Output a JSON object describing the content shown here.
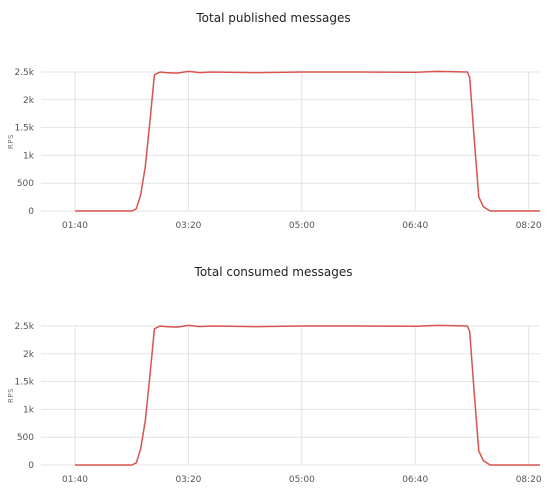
{
  "colors": {
    "line": "#d9534f",
    "grid": "#e3e3e3"
  },
  "chart_data": [
    {
      "type": "line",
      "title": "Total published messages",
      "ylabel": "RPS",
      "xlabel": "",
      "ylim": [
        0,
        2500
      ],
      "yticks": [
        0,
        500,
        1000,
        1500,
        2000,
        2500
      ],
      "ytick_labels": [
        "0",
        "500",
        "1k",
        "1.5k",
        "2k",
        "2.5k"
      ],
      "xlim": [
        70,
        510
      ],
      "xticks": [
        100,
        200,
        300,
        400,
        500
      ],
      "xtick_labels": [
        "01:40",
        "03:20",
        "05:00",
        "06:40",
        "08:20"
      ],
      "grid": true,
      "series": [
        {
          "x": [
            100,
            150,
            154,
            158,
            162,
            166,
            170,
            175,
            180,
            190,
            200,
            205,
            210,
            220,
            260,
            300,
            350,
            400,
            420,
            446,
            448,
            452,
            456,
            460,
            466,
            510
          ],
          "values": [
            0,
            0,
            40,
            300,
            800,
            1600,
            2450,
            2500,
            2490,
            2480,
            2510,
            2500,
            2490,
            2500,
            2490,
            2500,
            2500,
            2495,
            2510,
            2500,
            2400,
            1300,
            250,
            80,
            0,
            0
          ]
        }
      ]
    },
    {
      "type": "line",
      "title": "Total consumed messages",
      "ylabel": "RPS",
      "xlabel": "",
      "ylim": [
        0,
        2500
      ],
      "yticks": [
        0,
        500,
        1000,
        1500,
        2000,
        2500
      ],
      "ytick_labels": [
        "0",
        "500",
        "1k",
        "1.5k",
        "2k",
        "2.5k"
      ],
      "xlim": [
        70,
        510
      ],
      "xticks": [
        100,
        200,
        300,
        400,
        500
      ],
      "xtick_labels": [
        "01:40",
        "03:20",
        "05:00",
        "06:40",
        "08:20"
      ],
      "grid": true,
      "series": [
        {
          "x": [
            100,
            150,
            154,
            158,
            162,
            166,
            170,
            175,
            180,
            190,
            200,
            205,
            210,
            220,
            260,
            300,
            350,
            400,
            420,
            446,
            448,
            452,
            456,
            460,
            466,
            510
          ],
          "values": [
            0,
            0,
            40,
            300,
            800,
            1600,
            2450,
            2500,
            2490,
            2480,
            2510,
            2500,
            2490,
            2500,
            2490,
            2500,
            2500,
            2495,
            2510,
            2500,
            2400,
            1300,
            250,
            80,
            0,
            0
          ]
        }
      ]
    }
  ]
}
